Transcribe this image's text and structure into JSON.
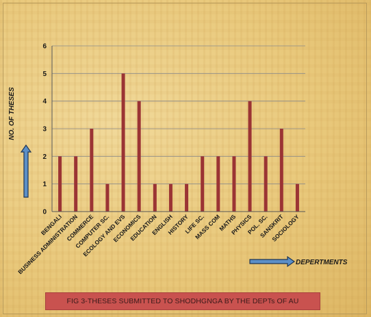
{
  "chart_data": {
    "type": "bar",
    "title": "",
    "xlabel": "DEPERTMENTS",
    "ylabel": "NO. OF THESES",
    "ylim": [
      0,
      6
    ],
    "yticks": [
      "0",
      "1",
      "2",
      "3",
      "4",
      "5",
      "6"
    ],
    "grid": "horizontal",
    "legend": "none",
    "bar_color": "#9b3434",
    "categories": [
      "BENGALI",
      "BUSINESS ADMINISTRATION",
      "COMMERCE",
      "COMPUTER SC.",
      "ECOLOGY AND EVS",
      "ECONOMICS",
      "EDUCATION",
      "ENGLISH",
      "HISTORY",
      "LIFE SC.",
      "MASS COM",
      "MATHS",
      "PHYSICS",
      "POL. SC.",
      "SANSKRIT",
      "SOCIOLOGY"
    ],
    "values": [
      2,
      2,
      3,
      1,
      5,
      4,
      1,
      1,
      1,
      2,
      2,
      2,
      4,
      2,
      3,
      1
    ]
  },
  "caption": "FIG 3-THESES SUBMITTED TO SHODHGNGA  BY THE DEPTs OF AU",
  "colors": {
    "arrow_fill": "#5b8fc7",
    "arrow_outline": "#1f3552",
    "caption_bg": "#c9524f"
  }
}
